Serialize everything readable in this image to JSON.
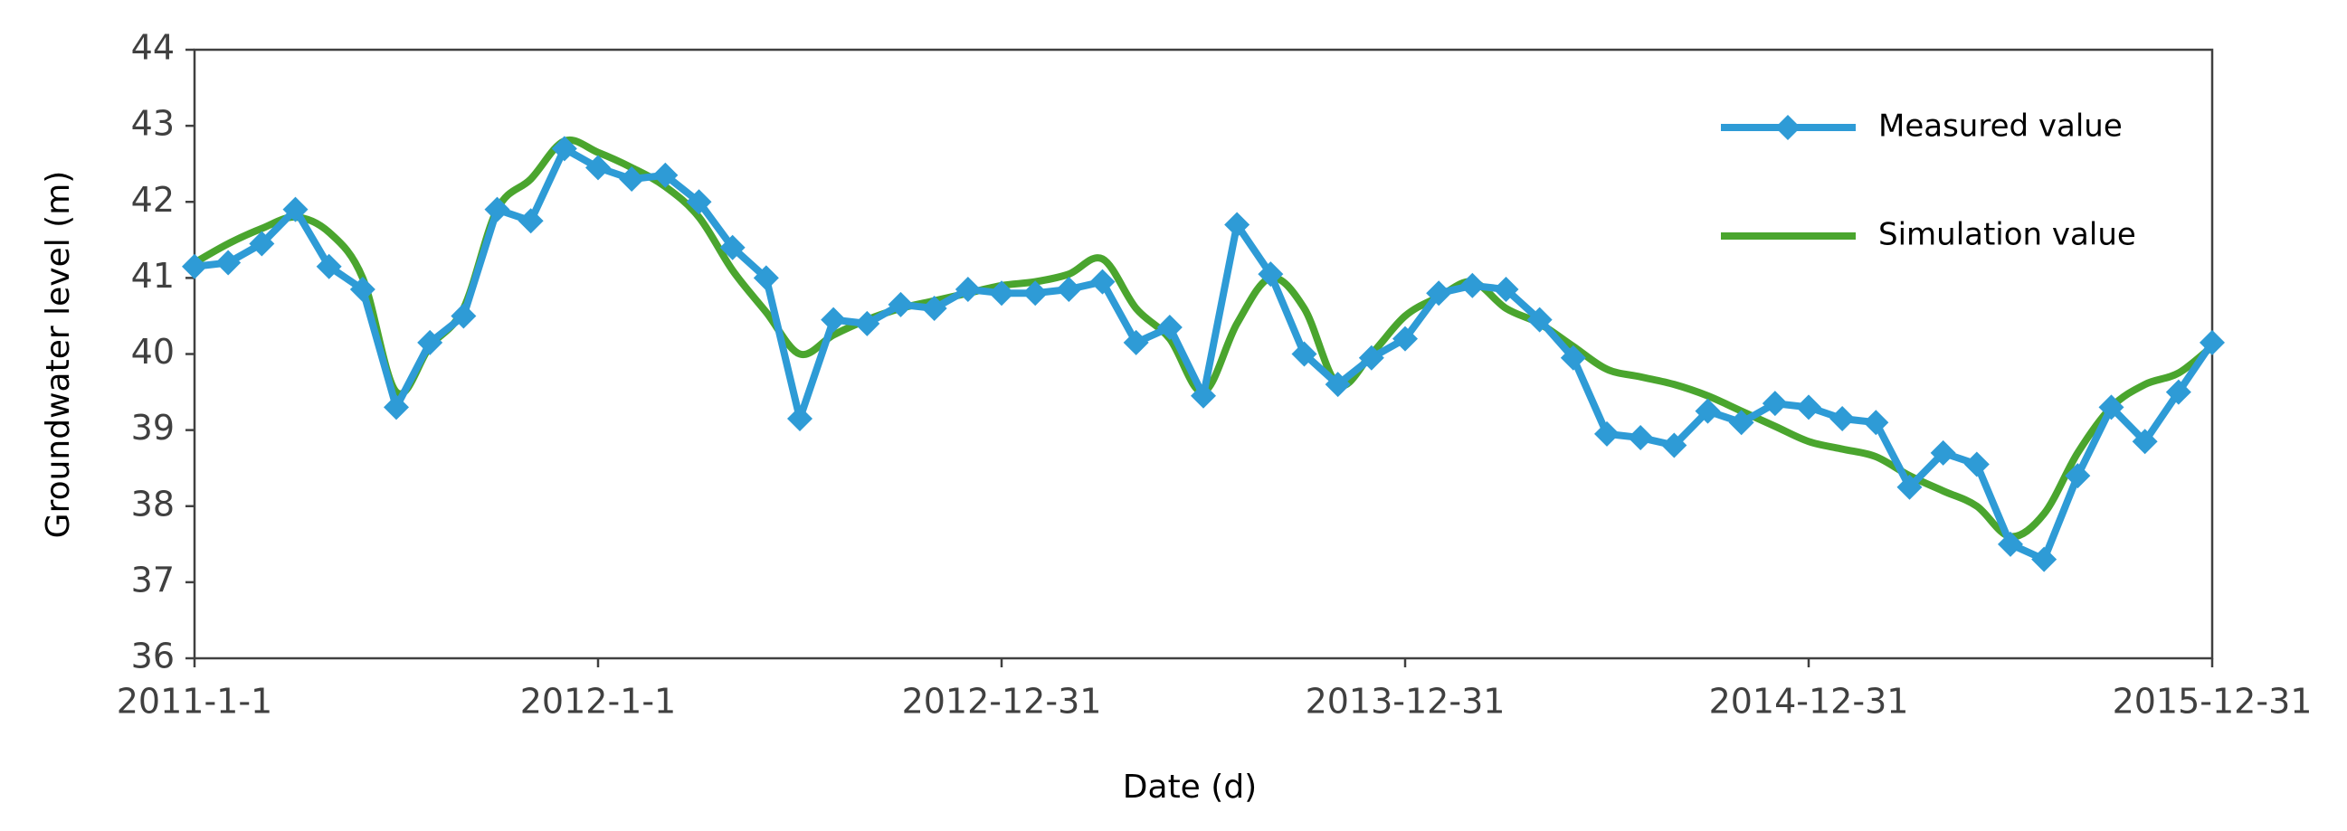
{
  "chart_data": {
    "type": "line",
    "x_label": "Date (d)",
    "y_label": "Groundwater level (m)",
    "xlim": [
      0,
      60
    ],
    "xticks": [
      {
        "value": 0,
        "label": "2011-1-1"
      },
      {
        "value": 12,
        "label": "2012-1-1"
      },
      {
        "value": 24,
        "label": "2012-12-31"
      },
      {
        "value": 36,
        "label": "2013-12-31"
      },
      {
        "value": 48,
        "label": "2014-12-31"
      },
      {
        "value": 60,
        "label": "2015-12-31"
      }
    ],
    "ylim": [
      36,
      44
    ],
    "yticks": [
      36,
      37,
      38,
      39,
      40,
      41,
      42,
      43,
      44
    ],
    "legend": "upper right",
    "series": [
      {
        "name": "Measured value",
        "color": "#2e9bd6",
        "marker": "diamond",
        "x": [
          0,
          1,
          2,
          3,
          4,
          5,
          6,
          7,
          8,
          9,
          10,
          11,
          12,
          13,
          14,
          15,
          16,
          17,
          18,
          19,
          20,
          21,
          22,
          23,
          24,
          25,
          26,
          27,
          28,
          29,
          30,
          31,
          32,
          33,
          34,
          35,
          36,
          37,
          38,
          39,
          40,
          41,
          42,
          43,
          44,
          45,
          46,
          47,
          48,
          49,
          50,
          51,
          52,
          53,
          54,
          55,
          56,
          57,
          58,
          59,
          60
        ],
        "values": [
          41.15,
          41.2,
          41.45,
          41.9,
          41.15,
          40.85,
          39.3,
          40.15,
          40.5,
          41.9,
          41.75,
          42.7,
          42.45,
          42.3,
          42.35,
          42.0,
          41.4,
          41.0,
          39.15,
          40.45,
          40.4,
          40.65,
          40.6,
          40.85,
          40.8,
          40.8,
          40.85,
          40.95,
          40.15,
          40.35,
          39.45,
          41.7,
          41.05,
          40.0,
          39.6,
          39.95,
          40.2,
          40.8,
          40.9,
          40.85,
          40.45,
          39.95,
          38.95,
          38.9,
          38.8,
          39.25,
          39.1,
          39.35,
          39.3,
          39.15,
          39.1,
          38.25,
          38.7,
          38.55,
          37.5,
          37.3,
          38.4,
          39.3,
          38.85,
          39.5,
          40.15
        ]
      },
      {
        "name": "Simulation value",
        "color": "#4aa52e",
        "marker": "none",
        "x": [
          0,
          1,
          2,
          3,
          4,
          5,
          6,
          7,
          8,
          9,
          10,
          11,
          12,
          13,
          14,
          15,
          16,
          17,
          18,
          19,
          20,
          21,
          22,
          23,
          24,
          25,
          26,
          27,
          28,
          29,
          30,
          31,
          32,
          33,
          34,
          35,
          36,
          37,
          38,
          39,
          40,
          41,
          42,
          43,
          44,
          45,
          46,
          47,
          48,
          49,
          50,
          51,
          52,
          53,
          54,
          55,
          56,
          57,
          58,
          59,
          60
        ],
        "values": [
          41.2,
          41.45,
          41.65,
          41.8,
          41.6,
          41.0,
          39.5,
          40.1,
          40.6,
          41.9,
          42.3,
          42.8,
          42.65,
          42.45,
          42.2,
          41.8,
          41.1,
          40.55,
          40.0,
          40.25,
          40.45,
          40.6,
          40.7,
          40.8,
          40.9,
          40.95,
          41.05,
          41.25,
          40.6,
          40.2,
          39.5,
          40.4,
          41.0,
          40.6,
          39.6,
          40.0,
          40.5,
          40.75,
          40.95,
          40.6,
          40.4,
          40.1,
          39.8,
          39.7,
          39.6,
          39.45,
          39.25,
          39.05,
          38.85,
          38.75,
          38.65,
          38.4,
          38.2,
          38.0,
          37.6,
          37.9,
          38.7,
          39.3,
          39.6,
          39.75,
          40.1
        ]
      }
    ]
  }
}
